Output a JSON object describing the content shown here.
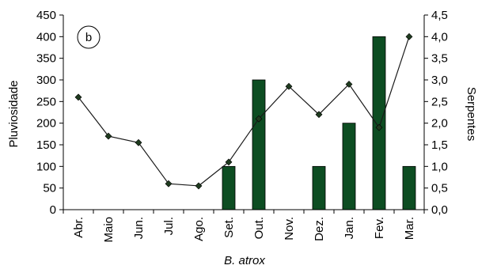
{
  "chart_data": {
    "type": "bar+line",
    "panel_label": "b",
    "xlabel": "B. atrox",
    "categories": [
      "Abr.",
      "Maio",
      "Jun.",
      "Jul.",
      "Ago.",
      "Set.",
      "Out.",
      "Nov.",
      "Dez.",
      "Jan.",
      "Fev.",
      "Mar."
    ],
    "left_axis": {
      "label": "Pluviosidade",
      "ylim": [
        0,
        450
      ],
      "ticks": [
        "0",
        "50",
        "100",
        "150",
        "200",
        "250",
        "300",
        "350",
        "400",
        "450"
      ]
    },
    "right_axis": {
      "label": "Serpentes",
      "ylim": [
        0,
        4.5
      ],
      "ticks": [
        "0,0",
        "0,5",
        "1,0",
        "1,5",
        "2,0",
        "2,5",
        "3,0",
        "3,5",
        "4,0",
        "4,5"
      ]
    },
    "bars": {
      "axis": "right",
      "color": "#0d4d22",
      "values": [
        0,
        0,
        0,
        0,
        0,
        1,
        3,
        0,
        1,
        2,
        4,
        1
      ]
    },
    "line": {
      "axis": "left",
      "color": "#1a1a1a",
      "marker": "diamond",
      "values": [
        260,
        170,
        155,
        60,
        55,
        110,
        210,
        285,
        220,
        290,
        190,
        400
      ]
    },
    "grid": false
  }
}
